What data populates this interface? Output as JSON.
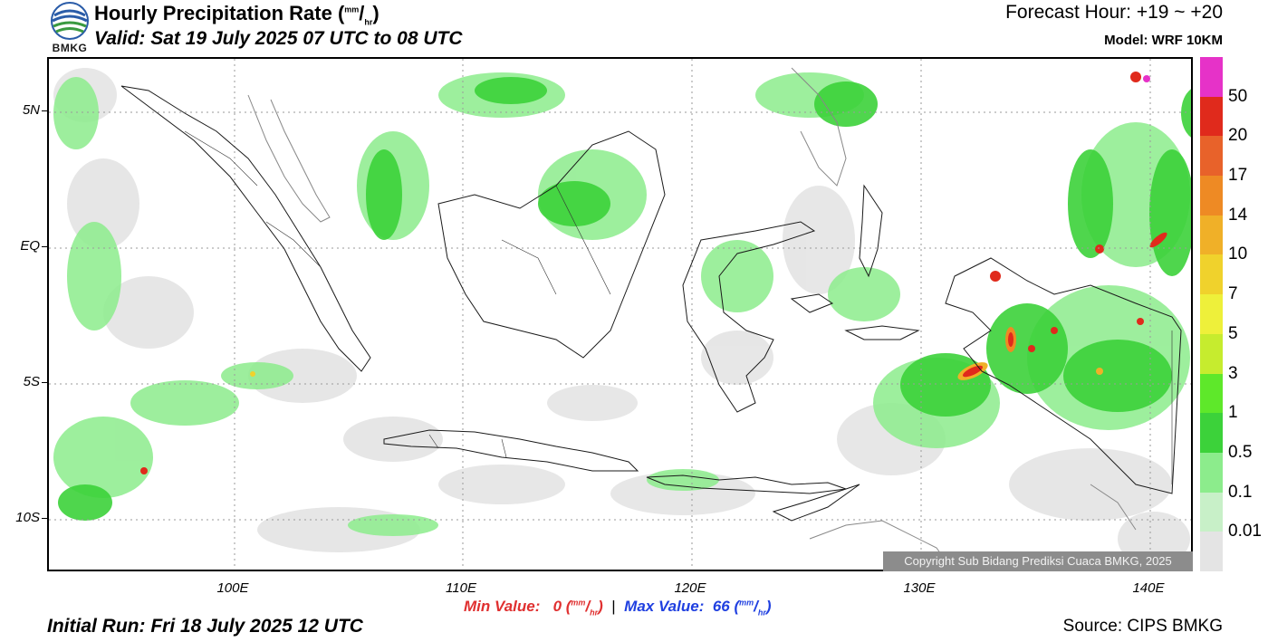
{
  "header": {
    "title_main": "Hourly Precipitation Rate (",
    "title_unit_num": "mm",
    "title_unit_den": "hr",
    "title_close": ")",
    "valid": "Valid: Sat 19 July 2025 07 UTC to 08 UTC",
    "forecast_hour": "Forecast Hour: +19 ~ +20",
    "model": "Model: WRF 10KM",
    "logo_text": "BMKG"
  },
  "axes": {
    "lat_labels": [
      "5N",
      "EQ",
      "5S",
      "10S"
    ],
    "lon_labels": [
      "100E",
      "110E",
      "120E",
      "130E",
      "140E"
    ]
  },
  "legend": {
    "labels": [
      "50",
      "20",
      "17",
      "14",
      "10",
      "7",
      "5",
      "3",
      "1",
      "0.5",
      "0.1",
      "0.01"
    ],
    "colors": [
      "#e632c8",
      "#e02a1c",
      "#e8622a",
      "#ee8a24",
      "#f0b028",
      "#f0d22c",
      "#eef03a",
      "#c6ec2e",
      "#5ee82a",
      "#3cd23a",
      "#8cec8c",
      "#c8f0c8",
      "#e4e4e4"
    ]
  },
  "stats": {
    "min_label": "Min Value:",
    "min_value": "0",
    "max_label": "Max Value:",
    "max_value": "66",
    "unit_num": "mm",
    "unit_den": "hr",
    "separator": "|"
  },
  "footer": {
    "initial_run": "Initial Run: Fri 18 July 2025 12 UTC",
    "source": "Source: CIPS BMKG",
    "copyright": "Copyright Sub Bidang Prediksi Cuaca BMKG, 2025"
  },
  "colors": {
    "frame": "#000000",
    "coast": "#1a1a1a",
    "grid": "#9a9a9a",
    "light_rain": "#8cec8c",
    "moderate_rain": "#3cd23a",
    "trace_rain": "#e4e4e4",
    "heavy_rain": "#e02a1c",
    "extreme_rain": "#e632c8"
  }
}
